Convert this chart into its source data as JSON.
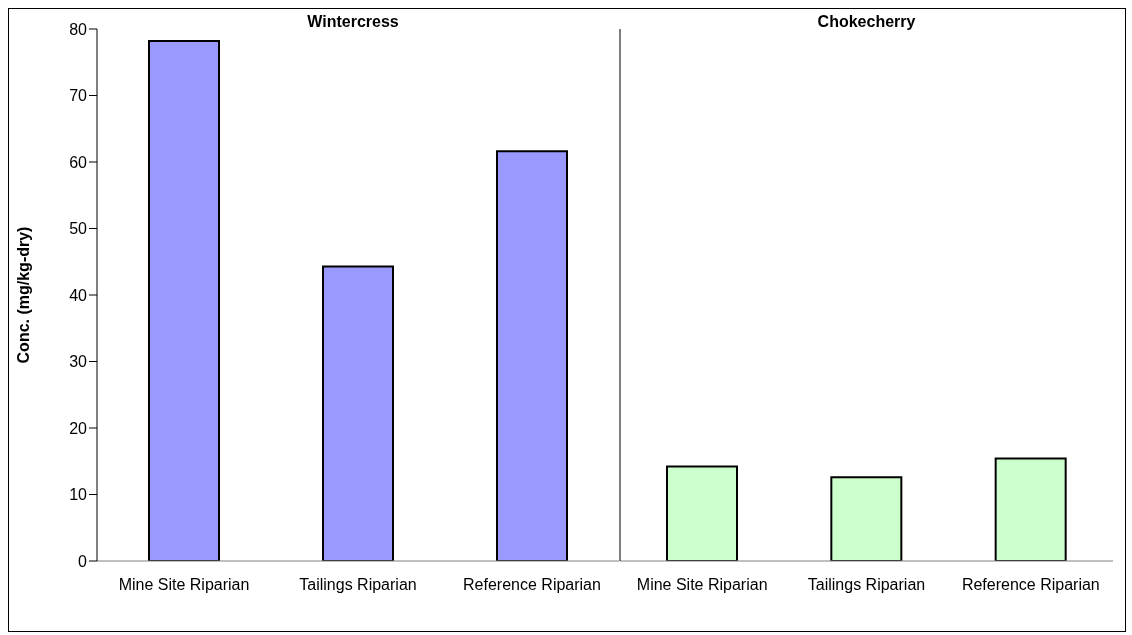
{
  "chart_data": [
    {
      "type": "bar",
      "title": "Wintercress",
      "ylabel": "Conc.  (mg/kg-dry)",
      "categories": [
        "Mine Site Riparian",
        "Tailings Riparian",
        "Reference Riparian"
      ],
      "values": [
        78.2,
        44.3,
        61.6
      ],
      "color": "#9999ff",
      "ylim": [
        0,
        80
      ],
      "yticks": [
        0,
        10,
        20,
        30,
        40,
        50,
        60,
        70,
        80
      ]
    },
    {
      "type": "bar",
      "title": "Chokecherry",
      "categories": [
        "Mine Site Riparian",
        "Tailings Riparian",
        "Reference Riparian"
      ],
      "values": [
        14.2,
        12.6,
        15.4
      ],
      "color": "#ccffcc",
      "ylim": [
        0,
        80
      ],
      "yticks": [
        0,
        10,
        20,
        30,
        40,
        50,
        60,
        70,
        80
      ],
      "tick_labels": "x"
    }
  ]
}
